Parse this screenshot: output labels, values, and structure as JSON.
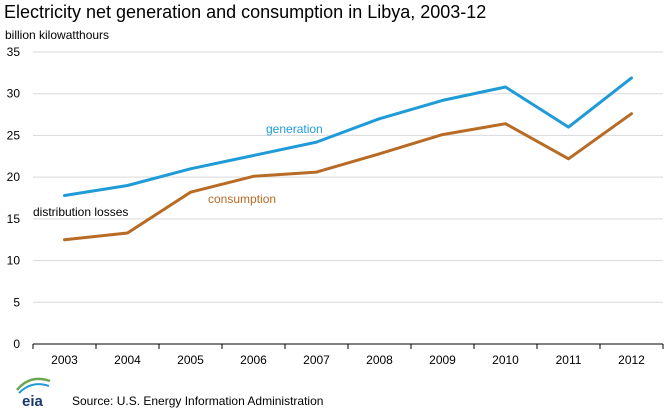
{
  "chart_data": {
    "type": "line",
    "title": "Electricity net generation and consumption in Libya, 2003-12",
    "unit_label": "billion kilowatthours",
    "categories": [
      "2003",
      "2004",
      "2005",
      "2006",
      "2007",
      "2008",
      "2009",
      "2010",
      "2011",
      "2012"
    ],
    "yticks": [
      "0",
      "5",
      "10",
      "15",
      "20",
      "25",
      "30",
      "35"
    ],
    "ylim": [
      0,
      35
    ],
    "grid": true,
    "series": [
      {
        "name": "generation",
        "color": "#1f9bd7",
        "values": [
          17.8,
          19.0,
          21.0,
          22.6,
          24.2,
          27.0,
          29.2,
          30.8,
          26.0,
          31.9
        ]
      },
      {
        "name": "consumption",
        "color": "#b86b25",
        "values": [
          12.5,
          13.3,
          18.2,
          20.1,
          20.6,
          22.8,
          25.1,
          26.4,
          22.2,
          27.6
        ]
      }
    ],
    "annotations": [
      {
        "text": "distribution losses",
        "color": "#000000"
      }
    ]
  },
  "footer": {
    "logo_text": "eia",
    "source": "Source: U.S. Energy Information Administration"
  }
}
